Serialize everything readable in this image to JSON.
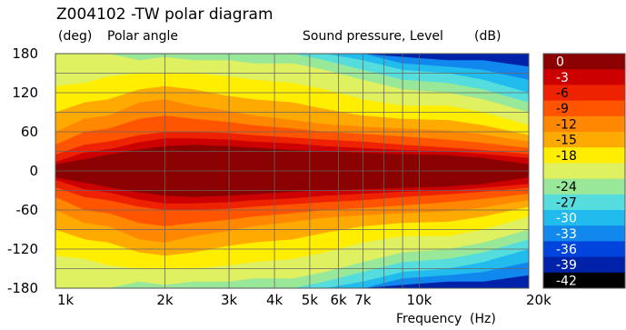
{
  "header": {
    "title": "Z004102 -TW polar diagram",
    "y_unit_label": "(deg)",
    "y_axis_label": "Polar angle",
    "z_label": "Sound pressure, Level",
    "z_unit_label": "(dB)"
  },
  "chart_data": {
    "type": "heatmap",
    "title": "Z004102 -TW polar diagram",
    "xlabel": "Frequency",
    "x_unit": "(Hz)",
    "ylabel": "Polar angle",
    "y_unit": "(deg)",
    "colorbar_label": "Sound pressure, Level",
    "colorbar_unit": "(dB)",
    "x_scale": "log",
    "xlim": [
      1000,
      20000
    ],
    "ylim": [
      -180,
      180
    ],
    "x_ticks": [
      {
        "value": 1000,
        "label": "1k"
      },
      {
        "value": 2000,
        "label": "2k"
      },
      {
        "value": 3000,
        "label": "3k"
      },
      {
        "value": 4000,
        "label": "4k"
      },
      {
        "value": 5000,
        "label": "5k"
      },
      {
        "value": 6000,
        "label": "6k"
      },
      {
        "value": 7000,
        "label": "7k"
      },
      {
        "value": 10000,
        "label": "10k"
      },
      {
        "value": 20000,
        "label": "20k"
      }
    ],
    "x_gridlines": [
      1000,
      2000,
      3000,
      4000,
      5000,
      6000,
      7000,
      8000,
      9000,
      10000,
      20000
    ],
    "y_ticks": [
      180,
      120,
      60,
      0,
      -60,
      -120,
      -180
    ],
    "y_gridlines": [
      180,
      150,
      120,
      90,
      60,
      30,
      0,
      -30,
      -60,
      -90,
      -120,
      -150,
      -180
    ],
    "grid": true,
    "symmetric_about_zero": true,
    "colorbar": {
      "placement": "right",
      "levels": [
        {
          "label": "0",
          "color": "#8b0000"
        },
        {
          "label": "-3",
          "color": "#cc0000"
        },
        {
          "label": "-6",
          "color": "#ee2200"
        },
        {
          "label": "-9",
          "color": "#ff5500"
        },
        {
          "label": "-12",
          "color": "#ff8800"
        },
        {
          "label": "-15",
          "color": "#ffaa00"
        },
        {
          "label": "-18",
          "color": "#ffee00"
        },
        {
          "label": "",
          "color": "#dff060"
        },
        {
          "label": "-24",
          "color": "#99e899"
        },
        {
          "label": "-27",
          "color": "#55dddd"
        },
        {
          "label": "-30",
          "color": "#22bbee"
        },
        {
          "label": "-33",
          "color": "#1188ee"
        },
        {
          "label": "-36",
          "color": "#0044dd"
        },
        {
          "label": "-39",
          "color": "#0022aa"
        },
        {
          "label": "-42",
          "color": "#000000"
        }
      ]
    },
    "contours": [
      {
        "level": -3,
        "angles": [
          10,
          18,
          25,
          33,
          38,
          40,
          38,
          36,
          32,
          30,
          28,
          26,
          24,
          20,
          10
        ]
      },
      {
        "level": -6,
        "angles": [
          14,
          28,
          33,
          44,
          50,
          50,
          48,
          45,
          42,
          38,
          35,
          32,
          30,
          26,
          20
        ]
      },
      {
        "level": -9,
        "angles": [
          25,
          40,
          45,
          55,
          60,
          60,
          58,
          55,
          51,
          48,
          45,
          40,
          36,
          32,
          26
        ]
      },
      {
        "level": -12,
        "angles": [
          40,
          60,
          65,
          80,
          85,
          80,
          75,
          70,
          65,
          60,
          57,
          53,
          48,
          43,
          35
        ]
      },
      {
        "level": -15,
        "angles": [
          60,
          80,
          85,
          105,
          110,
          100,
          92,
          85,
          78,
          72,
          68,
          65,
          62,
          56,
          45
        ]
      },
      {
        "level": -18,
        "angles": [
          90,
          105,
          110,
          125,
          130,
          125,
          115,
          110,
          105,
          95,
          85,
          80,
          78,
          70,
          55
        ]
      },
      {
        "level": -21,
        "angles": [
          130,
          135,
          145,
          150,
          150,
          150,
          145,
          140,
          135,
          125,
          110,
          100,
          100,
          90,
          70
        ]
      },
      {
        "level": -24,
        "angles": [
          180,
          180,
          180,
          170,
          175,
          170,
          170,
          165,
          165,
          155,
          140,
          125,
          120,
          110,
          90
        ]
      },
      {
        "level": -27,
        "angles": [
          180,
          180,
          180,
          180,
          180,
          180,
          180,
          180,
          180,
          170,
          155,
          140,
          135,
          125,
          105
        ]
      },
      {
        "level": -30,
        "angles": [
          180,
          180,
          180,
          180,
          180,
          180,
          180,
          180,
          180,
          180,
          170,
          155,
          150,
          140,
          120
        ]
      },
      {
        "level": -33,
        "angles": [
          180,
          180,
          180,
          180,
          180,
          180,
          180,
          180,
          180,
          180,
          180,
          165,
          160,
          155,
          140
        ]
      },
      {
        "level": -36,
        "angles": [
          180,
          180,
          180,
          180,
          180,
          180,
          180,
          180,
          180,
          180,
          180,
          175,
          170,
          170,
          160
        ]
      }
    ],
    "contour_frequencies": [
      1000,
      1200,
      1400,
      1700,
      2000,
      2400,
      3000,
      3500,
      4500,
      5500,
      7000,
      9000,
      12000,
      15000,
      20000
    ]
  }
}
